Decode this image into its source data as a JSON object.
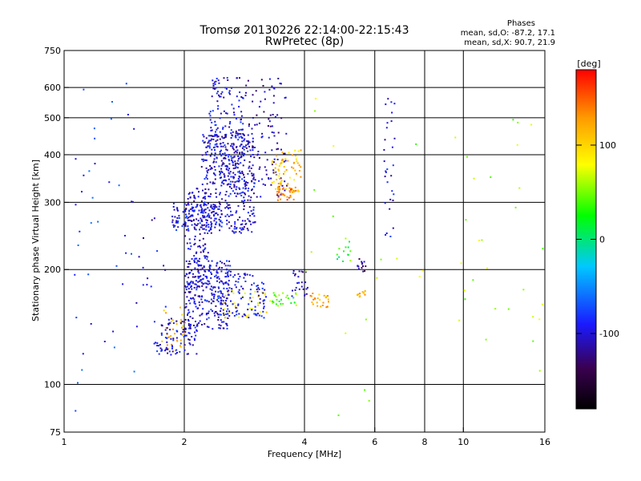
{
  "chart_data": {
    "type": "scatter",
    "title": "Tromsø 20130226 22:14:00-22:15:43",
    "subtitle": "RwPretec (8p)",
    "xlabel": "Frequency [MHz]",
    "ylabel": "Stationary phase Virtual Height [km]",
    "x_scale": "log",
    "y_scale": "log",
    "xlim": [
      1,
      16
    ],
    "ylim": [
      75,
      750
    ],
    "x_ticks": [
      {
        "value": 1,
        "label": "1"
      },
      {
        "value": 2,
        "label": "2"
      },
      {
        "value": 4,
        "label": "4"
      },
      {
        "value": 6,
        "label": "6"
      },
      {
        "value": 8,
        "label": "8"
      },
      {
        "value": 10,
        "label": "10"
      },
      {
        "value": 16,
        "label": "16"
      }
    ],
    "x_gridlines": [
      2,
      4,
      6,
      8,
      10
    ],
    "y_ticks": [
      {
        "value": 75,
        "label": "75"
      },
      {
        "value": 100,
        "label": "100"
      },
      {
        "value": 200,
        "label": "200"
      },
      {
        "value": 300,
        "label": "300"
      },
      {
        "value": 400,
        "label": "400"
      },
      {
        "value": 500,
        "label": "500"
      },
      {
        "value": 600,
        "label": "600"
      },
      {
        "value": 750,
        "label": "750"
      }
    ],
    "y_gridlines": [
      100,
      200,
      300,
      400,
      500,
      600
    ],
    "grid": true,
    "annotation": {
      "heading": "Phases",
      "line1": "mean, sd,O: -87.2, 17.1",
      "line2": "mean, sd,X:  90.7, 21.9"
    },
    "colorbar": {
      "label": "[deg]",
      "range": [
        -180,
        180
      ],
      "ticks": [
        {
          "value": 100,
          "label": "100"
        },
        {
          "value": 0,
          "label": "0"
        },
        {
          "value": -100,
          "label": "-100"
        }
      ],
      "colormap": [
        "#000000",
        "#3a0050",
        "#1a1aff",
        "#00c8ff",
        "#00ff00",
        "#ffff00",
        "#ff9900",
        "#ff0000"
      ]
    },
    "clusters": [
      {
        "x": [
          1.75,
          2.0
        ],
        "y": [
          120,
          160
        ],
        "phase": 120,
        "count": 35
      },
      {
        "x": [
          1.7,
          2.15
        ],
        "y": [
          120,
          150
        ],
        "phase": -100,
        "count": 90
      },
      {
        "x": [
          2.0,
          2.6
        ],
        "y": [
          140,
          215
        ],
        "phase": -100,
        "count": 260
      },
      {
        "x": [
          2.0,
          2.3
        ],
        "y": [
          180,
          330
        ],
        "phase": -105,
        "count": 140
      },
      {
        "x": [
          1.85,
          2.4
        ],
        "y": [
          255,
          300
        ],
        "phase": -95,
        "count": 120
      },
      {
        "x": [
          2.2,
          3.0
        ],
        "y": [
          250,
          460
        ],
        "phase": -100,
        "count": 380
      },
      {
        "x": [
          2.3,
          2.8
        ],
        "y": [
          330,
          640
        ],
        "phase": -100,
        "count": 180
      },
      {
        "x": [
          2.8,
          3.6
        ],
        "y": [
          310,
          640
        ],
        "phase": -110,
        "count": 120
      },
      {
        "x": [
          3.3,
          3.9
        ],
        "y": [
          320,
          420
        ],
        "phase": 110,
        "count": 70
      },
      {
        "x": [
          3.4,
          3.8
        ],
        "y": [
          305,
          330
        ],
        "phase": 140,
        "count": 35
      },
      {
        "x": [
          2.5,
          3.3
        ],
        "y": [
          150,
          180
        ],
        "phase": 90,
        "count": 35
      },
      {
        "x": [
          2.4,
          3.2
        ],
        "y": [
          150,
          200
        ],
        "phase": -95,
        "count": 110
      },
      {
        "x": [
          3.3,
          3.8
        ],
        "y": [
          160,
          175
        ],
        "phase": 40,
        "count": 25
      },
      {
        "x": [
          3.7,
          4.1
        ],
        "y": [
          170,
          200
        ],
        "phase": -110,
        "count": 25
      },
      {
        "x": [
          4.1,
          4.6
        ],
        "y": [
          160,
          175
        ],
        "phase": 120,
        "count": 25
      },
      {
        "x": [
          5.4,
          5.7
        ],
        "y": [
          170,
          180
        ],
        "phase": 110,
        "count": 12
      },
      {
        "x": [
          5.4,
          5.7
        ],
        "y": [
          195,
          215
        ],
        "phase": -120,
        "count": 15
      },
      {
        "x": [
          6.3,
          6.7
        ],
        "y": [
          240,
          600
        ],
        "phase": -100,
        "count": 30
      },
      {
        "x": [
          4.8,
          5.2
        ],
        "y": [
          210,
          240
        ],
        "phase": 20,
        "count": 12
      },
      {
        "x": [
          1.5,
          1.8
        ],
        "y": [
          120,
          300
        ],
        "phase": -100,
        "count": 20
      },
      {
        "x": [
          1.05,
          1.5
        ],
        "y": [
          85,
          700
        ],
        "phase": -80,
        "count": 40
      },
      {
        "x": [
          9.5,
          16
        ],
        "y": [
          100,
          500
        ],
        "phase": 60,
        "count": 30
      },
      {
        "x": [
          4.0,
          8.0
        ],
        "y": [
          75,
          640
        ],
        "phase": 60,
        "count": 20
      }
    ]
  }
}
